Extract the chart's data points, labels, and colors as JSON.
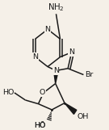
{
  "bg_color": "#f5f0e8",
  "bond_color": "#1a1a1a",
  "text_color": "#1a1a1a",
  "line_width": 1.1,
  "font_size": 6.8,
  "figsize": [
    1.35,
    1.61
  ],
  "dpi": 100,
  "xlim": [
    0,
    1
  ],
  "ylim": [
    0,
    1
  ]
}
